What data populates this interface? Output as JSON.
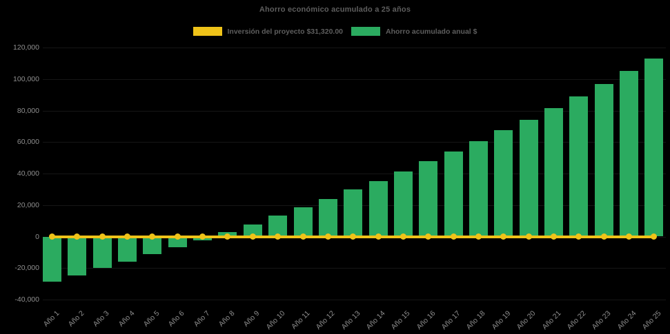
{
  "window": {
    "background": "#000000"
  },
  "chart_data": {
    "type": "bar",
    "title": "Ahorro económico acumulado a 25 años",
    "xlabel": "",
    "ylabel": "",
    "ylim": [
      -40000,
      120000
    ],
    "grid": "faint",
    "legend_position": "top",
    "x_tick_rotation": 45,
    "categories": [
      "Año 1",
      "Año 2",
      "Año 3",
      "Año 4",
      "Año 5",
      "Año 6",
      "Año 7",
      "Año 8",
      "Año 9",
      "Año 10",
      "Año 11",
      "Año 12",
      "Año 13",
      "Año 14",
      "Año 15",
      "Año 16",
      "Año 17",
      "Año 18",
      "Año 19",
      "Año 20",
      "Año 21",
      "Año 22",
      "Año 23",
      "Año 24",
      "Año 25"
    ],
    "yticks": [
      {
        "value": 120000,
        "label": "120,000"
      },
      {
        "value": 100000,
        "label": "100,000"
      },
      {
        "value": 80000,
        "label": "80,000"
      },
      {
        "value": 60000,
        "label": "60,000"
      },
      {
        "value": 40000,
        "label": "40,000"
      },
      {
        "value": 20000,
        "label": "20,000"
      },
      {
        "value": 0,
        "label": "0"
      },
      {
        "value": -20000,
        "label": "-20,000"
      },
      {
        "value": -40000,
        "label": "-40,000"
      }
    ],
    "series": [
      {
        "name": "Inversión del proyecto $31,320.00",
        "type": "line",
        "color": "#EFC319",
        "marker": "circle",
        "values": [
          0,
          0,
          0,
          0,
          0,
          0,
          0,
          0,
          0,
          0,
          0,
          0,
          0,
          0,
          0,
          0,
          0,
          0,
          0,
          0,
          0,
          0,
          0,
          0,
          0
        ]
      },
      {
        "name": "Ahorro acumulado anual $",
        "type": "bar",
        "color": "#2BAB60",
        "values": [
          -28800,
          -24700,
          -20000,
          -15900,
          -11300,
          -6900,
          -2400,
          2700,
          7700,
          13500,
          18600,
          24000,
          29900,
          35200,
          41300,
          47900,
          53800,
          60500,
          67400,
          74200,
          81400,
          88900,
          96900,
          105000,
          113000
        ]
      }
    ]
  }
}
